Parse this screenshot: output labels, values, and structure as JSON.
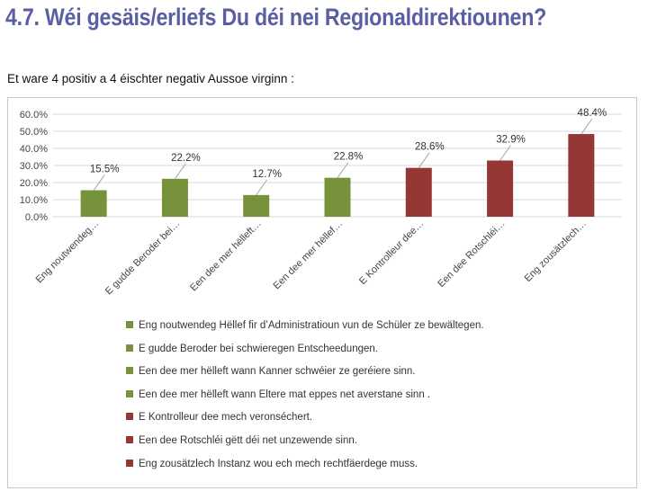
{
  "title": "4.7. Wéi gesäis/erliefs Du déi nei Regionaldirektiounen?",
  "subtitle": "Et ware 4 positiv a 4 éischter negativ Aussoe virginn :",
  "colors": {
    "positive": "#76933c",
    "negative": "#953735",
    "title": "#5a5ea3"
  },
  "chart_data": {
    "type": "bar",
    "ylim": [
      0,
      60
    ],
    "yticks": [
      "0.0%",
      "10.0%",
      "20.0%",
      "30.0%",
      "40.0%",
      "50.0%",
      "60.0%"
    ],
    "grid": true,
    "legend_position": "bottom",
    "categories": [
      "Eng noutwendeg…",
      "E gudde Beroder bei…",
      "Een dee mer hëlleft…",
      "Een dee mer hëllef…",
      "E Kontrolleur dee…",
      "Een dee Rotschléi…",
      "Eng zousätzlech…"
    ],
    "values": [
      15.5,
      22.2,
      12.7,
      22.8,
      28.6,
      32.9,
      48.4
    ],
    "data_labels": [
      "15.5%",
      "22.2%",
      "12.7%",
      "22.8%",
      "28.6%",
      "32.9%",
      "48.4%"
    ],
    "sentiment": [
      "positive",
      "positive",
      "positive",
      "positive",
      "negative",
      "negative",
      "negative"
    ],
    "legend": [
      "Eng noutwendeg Hëllef fir d’Administratioun vun de Schüler ze bewältegen.",
      "E gudde Beroder bei schwieregen Entscheedungen.",
      "Een dee mer hëlleft wann Kanner schwéier ze geréiere sinn.",
      "Een dee mer hëlleft wann Eltere mat eppes net averstane sinn .",
      "E Kontrolleur dee mech veronséchert.",
      "Een dee Rotschléi gëtt déi net unzewende sinn.",
      "Eng zousätzlech Instanz wou ech mech rechtfäerdege muss."
    ]
  }
}
